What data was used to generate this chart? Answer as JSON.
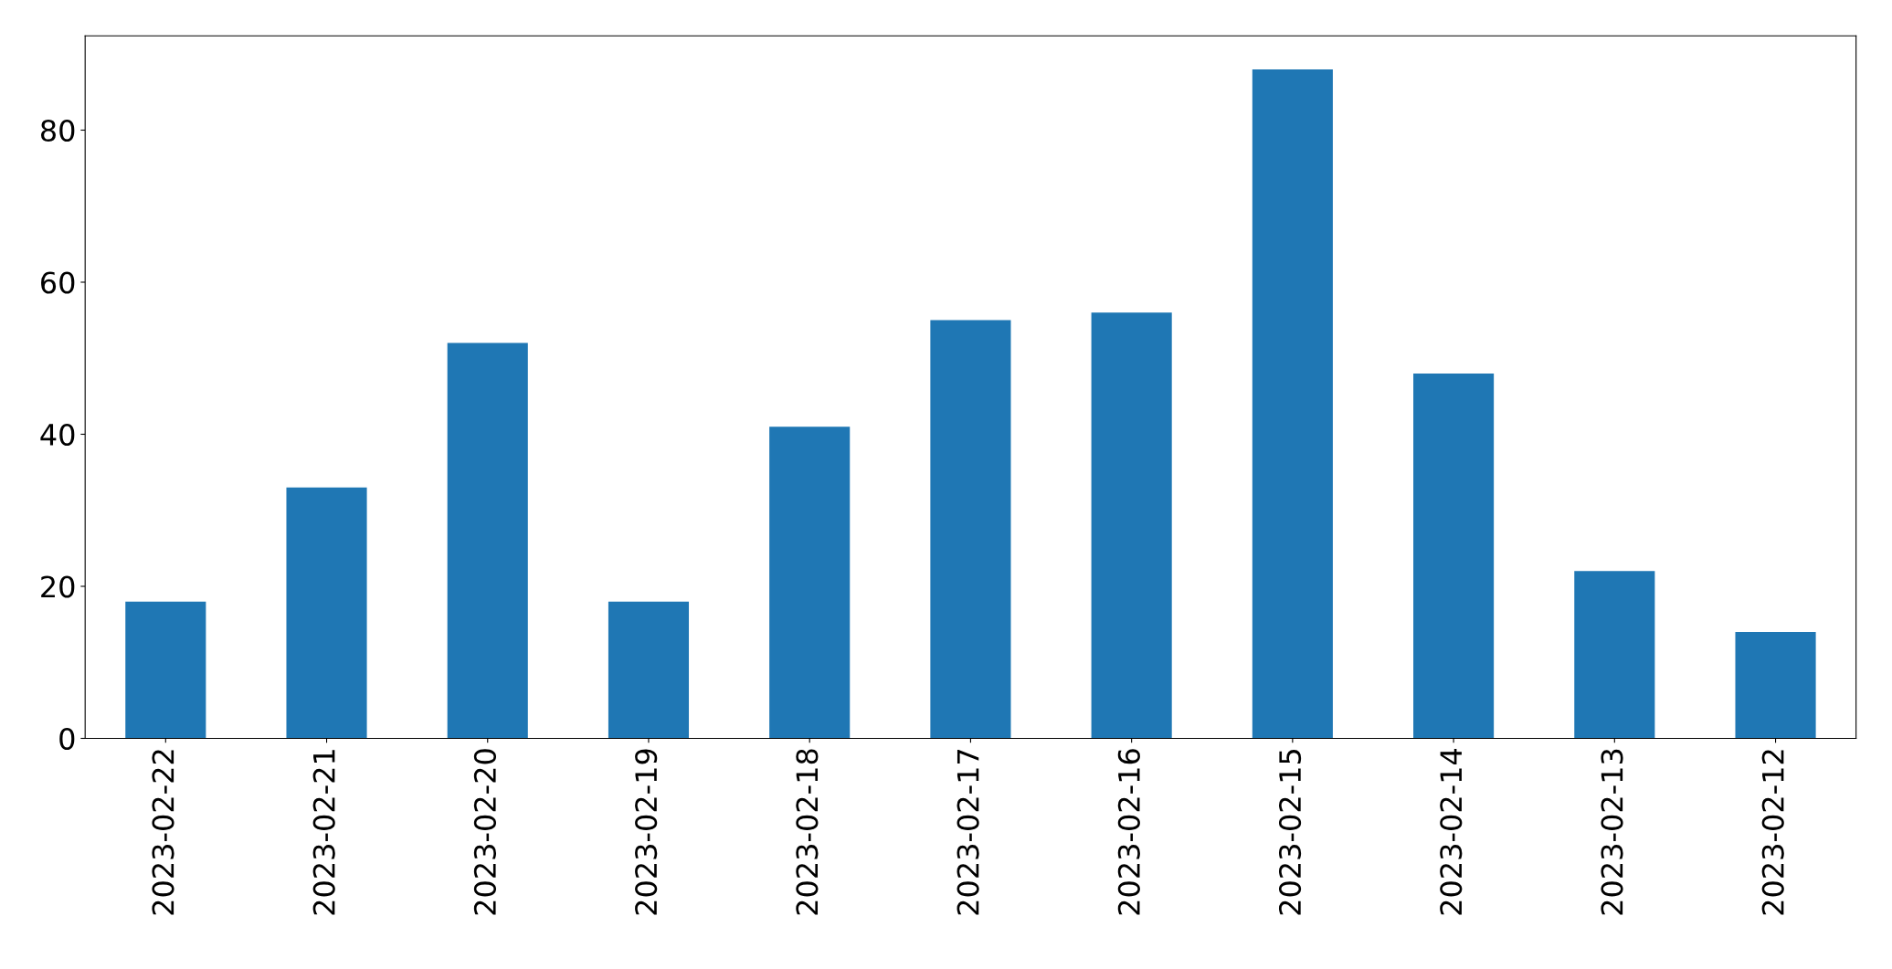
{
  "chart_data": {
    "type": "bar",
    "categories": [
      "2023-02-22",
      "2023-02-21",
      "2023-02-20",
      "2023-02-19",
      "2023-02-18",
      "2023-02-17",
      "2023-02-16",
      "2023-02-15",
      "2023-02-14",
      "2023-02-13",
      "2023-02-12"
    ],
    "values": [
      18,
      33,
      52,
      18,
      41,
      55,
      56,
      88,
      48,
      22,
      14
    ],
    "color": "#1f77b4",
    "ylim": [
      0,
      92.4
    ],
    "yticks": [
      0,
      20,
      40,
      60,
      80
    ],
    "grid": false,
    "legend": false
  }
}
